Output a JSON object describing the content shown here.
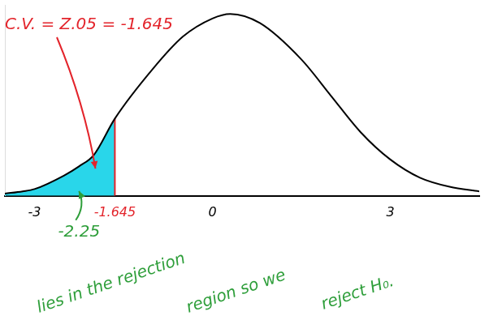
{
  "chart_data": {
    "type": "line",
    "x": [
      -3.5,
      -3.2,
      -3,
      -2.5,
      -2.25,
      -2,
      -1.645,
      -1,
      -0.5,
      0,
      0.3,
      0.8,
      1.5,
      2,
      2.5,
      3,
      3.5,
      4,
      4.5
    ],
    "values": [
      0.005,
      0.01,
      0.015,
      0.045,
      0.065,
      0.09,
      0.17,
      0.28,
      0.35,
      0.39,
      0.4,
      0.38,
      0.3,
      0.22,
      0.14,
      0.08,
      0.04,
      0.02,
      0.01
    ],
    "color": "#000000",
    "xlim": [
      -3.5,
      4.5
    ],
    "xticks": [
      -3,
      -1.645,
      0,
      3
    ],
    "ylim": [
      0,
      0.42
    ],
    "tick_labels": "x",
    "grid": false,
    "critical_value": -1.645,
    "critical_label": "C.V. = Z.05 = -1.645",
    "critical_color": "#e3242b",
    "rejection_color": "#29d6ea",
    "test_statistic": -2.25,
    "conclusion": [
      "lies in the rejection",
      "region so we",
      "reject H₀."
    ],
    "annotation_color": "#2e9e3a"
  }
}
